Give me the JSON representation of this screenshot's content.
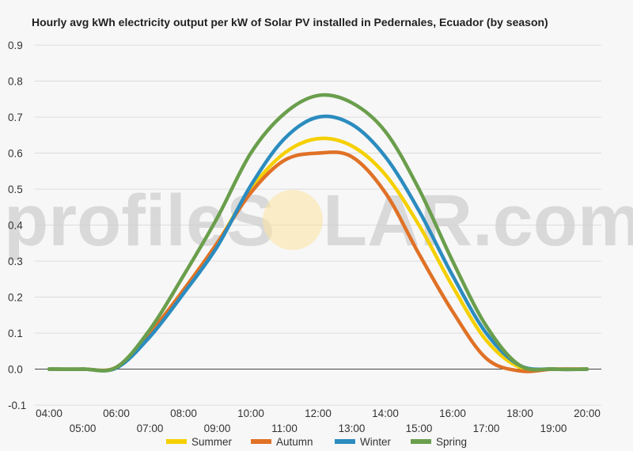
{
  "watermark": {
    "text_left": "profileS",
    "text_right": "LAR.com",
    "sun_color": "#fbe3a0"
  },
  "chart_data": {
    "type": "line",
    "title": "Hourly avg kWh electricity output per kW of Solar PV installed in Pedernales, Ecuador (by season)",
    "xlabel": "",
    "ylabel": "",
    "x": [
      4,
      5,
      6,
      7,
      8,
      9,
      10,
      11,
      12,
      13,
      14,
      15,
      16,
      17,
      18,
      19,
      20
    ],
    "x_tick_labels": [
      "04:00",
      "05:00",
      "06:00",
      "07:00",
      "08:00",
      "09:00",
      "10:00",
      "11:00",
      "12:00",
      "13:00",
      "14:00",
      "15:00",
      "16:00",
      "17:00",
      "18:00",
      "19:00",
      "20:00"
    ],
    "ylim": [
      -0.1,
      0.9
    ],
    "y_ticks": [
      -0.1,
      0.0,
      0.1,
      0.2,
      0.3,
      0.4,
      0.5,
      0.6,
      0.7,
      0.8,
      0.9
    ],
    "y_tick_labels": [
      "-0.1",
      "0.0",
      "0.1",
      "0.2",
      "0.3",
      "0.4",
      "0.5",
      "0.6",
      "0.7",
      "0.8",
      "0.9"
    ],
    "grid": true,
    "legend_position": "bottom",
    "series": [
      {
        "name": "Summer",
        "color": "#f5d000",
        "values": [
          0.0,
          0.0,
          0.005,
          0.1,
          0.22,
          0.35,
          0.5,
          0.6,
          0.64,
          0.62,
          0.54,
          0.4,
          0.23,
          0.08,
          0.005,
          0.0,
          0.0
        ]
      },
      {
        "name": "Autumn",
        "color": "#e07126",
        "values": [
          0.0,
          0.0,
          0.005,
          0.1,
          0.22,
          0.35,
          0.49,
          0.58,
          0.6,
          0.59,
          0.49,
          0.32,
          0.16,
          0.03,
          -0.005,
          0.0,
          0.0
        ]
      },
      {
        "name": "Winter",
        "color": "#2b8cbf",
        "values": [
          0.0,
          0.0,
          0.003,
          0.09,
          0.21,
          0.34,
          0.51,
          0.64,
          0.7,
          0.68,
          0.59,
          0.44,
          0.26,
          0.1,
          0.01,
          0.0,
          0.0
        ]
      },
      {
        "name": "Spring",
        "color": "#6a9e4c",
        "values": [
          0.0,
          0.0,
          0.005,
          0.11,
          0.26,
          0.42,
          0.6,
          0.71,
          0.76,
          0.74,
          0.66,
          0.5,
          0.3,
          0.12,
          0.01,
          0.0,
          0.0
        ]
      }
    ]
  }
}
